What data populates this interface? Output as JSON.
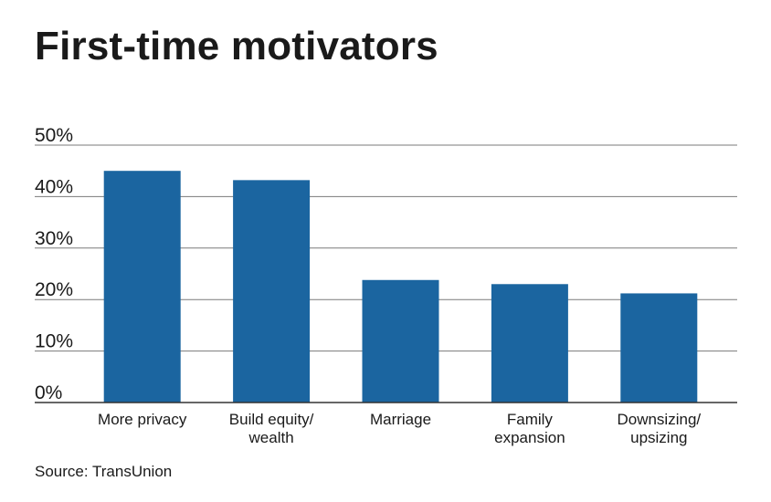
{
  "title": "First-time motivators",
  "source": "Source: TransUnion",
  "colors": {
    "bar": "#1b65a0",
    "grid": "#7a7a7a",
    "axis": "#333333"
  },
  "chart_data": {
    "type": "bar",
    "title": "First-time motivators",
    "xlabel": "",
    "ylabel": "",
    "categories": [
      [
        "More privacy"
      ],
      [
        "Build equity/",
        "wealth"
      ],
      [
        "Marriage"
      ],
      [
        "Family",
        "expansion"
      ],
      [
        "Downsizing/",
        "upsizing"
      ]
    ],
    "values": [
      45,
      43.2,
      23.8,
      23,
      21.2
    ],
    "ylim": [
      0,
      50
    ],
    "yticks": [
      0,
      10,
      20,
      30,
      40,
      50
    ],
    "ytick_labels": [
      "0%",
      "10%",
      "20%",
      "30%",
      "40%",
      "50%"
    ],
    "grid": true,
    "legend": "none"
  }
}
